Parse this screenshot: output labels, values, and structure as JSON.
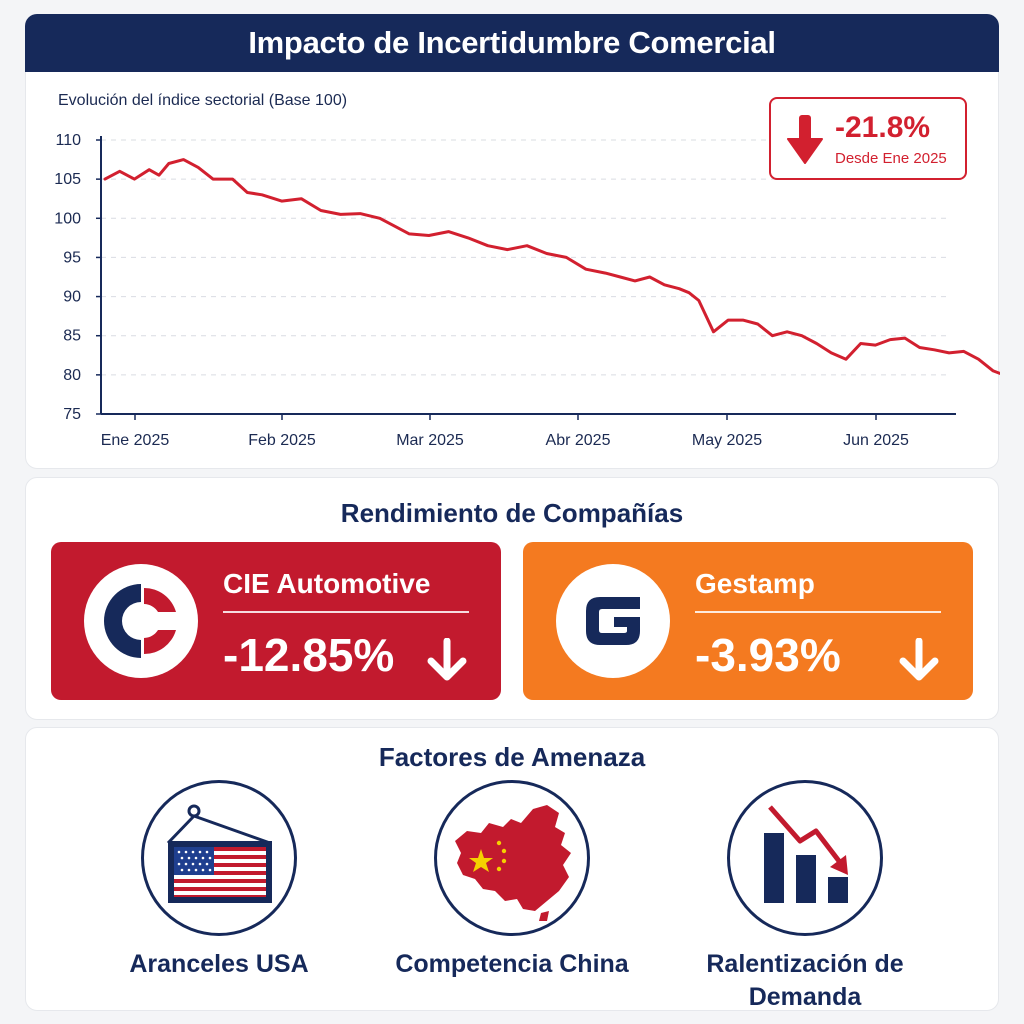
{
  "header": {
    "title": "Impacto de Incertidumbre Comercial"
  },
  "chart": {
    "subtitle": "Evolución del índice sectorial (Base 100)",
    "delta_value": "-21.8%",
    "delta_label": "Desde Ene 2025",
    "end_label": "78.2"
  },
  "chart_data": {
    "type": "line",
    "title": "",
    "subtitle": "Evolución del índice sectorial (Base 100)",
    "xlabel": "",
    "ylabel": "",
    "x_tick_labels": [
      "Ene 2025",
      "Feb 2025",
      "Mar 2025",
      "Abr 2025",
      "May 2025",
      "Jun 2025"
    ],
    "y_ticks": [
      110,
      105,
      100,
      95,
      90,
      85,
      80,
      75
    ],
    "ylim": [
      75,
      110
    ],
    "grid": "horizontal-dashed",
    "series": [
      {
        "color": "#d2202f",
        "x": [
          "2025-01-01",
          "2025-01-04",
          "2025-01-07",
          "2025-01-10",
          "2025-01-12",
          "2025-01-14",
          "2025-01-17",
          "2025-01-20",
          "2025-01-23",
          "2025-01-27",
          "2025-01-30",
          "2025-02-02",
          "2025-02-06",
          "2025-02-10",
          "2025-02-14",
          "2025-02-18",
          "2025-02-22",
          "2025-02-26",
          "2025-03-01",
          "2025-03-04",
          "2025-03-08",
          "2025-03-12",
          "2025-03-16",
          "2025-03-20",
          "2025-03-24",
          "2025-03-28",
          "2025-04-01",
          "2025-04-05",
          "2025-04-09",
          "2025-04-13",
          "2025-04-16",
          "2025-04-19",
          "2025-04-22",
          "2025-04-25",
          "2025-04-28",
          "2025-04-30",
          "2025-05-02",
          "2025-05-05",
          "2025-05-08",
          "2025-05-11",
          "2025-05-14",
          "2025-05-17",
          "2025-05-20",
          "2025-05-23",
          "2025-05-26",
          "2025-05-29",
          "2025-06-01",
          "2025-06-04",
          "2025-06-07",
          "2025-06-10",
          "2025-06-13",
          "2025-06-16",
          "2025-06-19",
          "2025-06-22",
          "2025-06-25",
          "2025-06-28",
          "2025-07-01",
          "2025-07-04",
          "2025-07-07",
          "2025-07-09",
          "2025-07-11",
          "2025-07-14"
        ],
        "values": [
          105,
          106,
          105,
          106.2,
          105.5,
          107,
          107.5,
          106.5,
          105,
          105,
          103.3,
          103,
          102.2,
          102.5,
          101,
          100.5,
          100.6,
          100,
          99,
          98,
          97.8,
          98.3,
          97.5,
          96.5,
          96,
          96.5,
          95.5,
          95,
          93.5,
          93,
          92.5,
          92,
          92.5,
          91.5,
          91,
          90.5,
          89.5,
          85.5,
          87,
          87,
          86.5,
          85,
          85.5,
          85,
          84,
          82.8,
          82,
          84,
          83.8,
          84.5,
          84.7,
          83.5,
          83.2,
          82.8,
          83,
          82,
          80.5,
          79.8,
          80.5,
          79.5,
          78.5,
          78.2
        ]
      }
    ],
    "last_point": {
      "x": "2025-07-14",
      "value": 78.2
    }
  },
  "companies": {
    "title": "Rendimiento de Compañías",
    "items": [
      {
        "name": "CIE Automotive",
        "change": "-12.85%",
        "color": "#c21a2e"
      },
      {
        "name": "Gestamp",
        "change": "-3.93%",
        "color": "#f47a20"
      }
    ]
  },
  "threats": {
    "title": "Factores de Amenaza",
    "items": [
      {
        "label": "Aranceles USA",
        "icon": "us-flag-sign-icon"
      },
      {
        "label": "Competencia China",
        "icon": "china-map-icon"
      },
      {
        "label": "Ralentización de Demanda",
        "icon": "declining-bars-icon"
      }
    ]
  }
}
